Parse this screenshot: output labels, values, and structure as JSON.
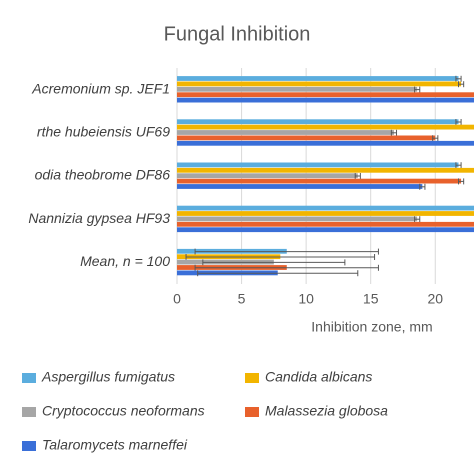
{
  "chart_data": {
    "type": "bar",
    "orientation": "horizontal",
    "title": "Fungal Inhibition",
    "x_label": "Inhibition zone, mm",
    "categories": [
      "Acremonium sp. JEF1",
      "rthe hubeiensis UF69",
      "odia theobrome DF86",
      "Nannizia gypsea HF93",
      "Mean, n = 100"
    ],
    "series": [
      {
        "name": "Aspergillus fumigatus",
        "color": "#5badde",
        "values": [
          21.8,
          21.8,
          21.8,
          23.5,
          8.5
        ],
        "errors": [
          0.2,
          0.2,
          0.2,
          0.2,
          7.1
        ]
      },
      {
        "name": "Candida albicans",
        "color": "#f2b500",
        "values": [
          22.0,
          23.5,
          23.5,
          23.5,
          8.0
        ],
        "errors": [
          0.2,
          0.2,
          0.2,
          0.2,
          7.3
        ]
      },
      {
        "name": "Cryptococcus neoformans",
        "color": "#a6a6a6",
        "values": [
          18.6,
          16.8,
          14.0,
          18.6,
          7.5
        ],
        "errors": [
          0.2,
          0.2,
          0.2,
          0.2,
          5.5
        ]
      },
      {
        "name": "Malassezia globosa",
        "color": "#e8612c",
        "values": [
          23.5,
          20.0,
          22.0,
          23.5,
          8.5
        ],
        "errors": [
          0.2,
          0.2,
          0.2,
          0.2,
          7.1
        ]
      },
      {
        "name": "Talaromycets marneffei",
        "color": "#3a6fd8",
        "values": [
          23.5,
          23.5,
          19.0,
          23.5,
          7.8
        ],
        "errors": [
          0.2,
          0.2,
          0.2,
          0.2,
          6.2
        ]
      }
    ],
    "xlim": [
      0,
      23
    ],
    "xticks": [
      0,
      5,
      10,
      15,
      20
    ],
    "grid": true
  }
}
